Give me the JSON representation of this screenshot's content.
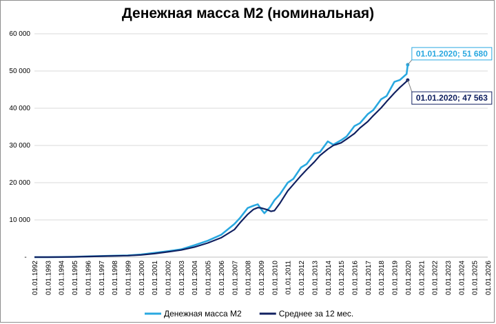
{
  "chart_data": {
    "type": "line",
    "title": "Денежная масса М2 (номинальная)",
    "xlabel": "",
    "ylabel": "",
    "ylim": [
      0,
      60000
    ],
    "xlim": [
      "1992-01-01",
      "2026-01-01"
    ],
    "y_ticks": [
      "-",
      "10 000",
      "20 000",
      "30 000",
      "40 000",
      "50 000",
      "60 000"
    ],
    "x_ticks": [
      "01.01.1992",
      "01.01.1993",
      "01.01.1994",
      "01.01.1995",
      "01.01.1996",
      "01.01.1997",
      "01.01.1998",
      "01.01.1999",
      "01.01.2000",
      "01.01.2001",
      "01.01.2002",
      "01.01.2003",
      "01.01.2004",
      "01.01.2005",
      "01.01.2006",
      "01.01.2007",
      "01.01.2008",
      "01.01.2009",
      "01.01.2010",
      "01.01.2011",
      "01.01.2012",
      "01.01.2013",
      "01.01.2014",
      "01.01.2015",
      "01.01.2016",
      "01.01.2017",
      "01.01.2018",
      "01.01.2019",
      "01.01.2020",
      "01.01.2021",
      "01.01.2022",
      "01.01.2023",
      "01.01.2024",
      "01.01.2025",
      "01.01.2026"
    ],
    "grid": true,
    "legend_position": "bottom",
    "series": [
      {
        "name": "Денежная масса М2",
        "color": "#29a8e0",
        "points": [
          [
            "1992-01-01",
            0
          ],
          [
            "1993-01-01",
            5
          ],
          [
            "1994-01-01",
            30
          ],
          [
            "1995-01-01",
            100
          ],
          [
            "1996-01-01",
            200
          ],
          [
            "1997-01-01",
            300
          ],
          [
            "1998-01-01",
            380
          ],
          [
            "1999-01-01",
            450
          ],
          [
            "2000-01-01",
            700
          ],
          [
            "2001-01-01",
            1150
          ],
          [
            "2002-01-01",
            1600
          ],
          [
            "2003-01-01",
            2100
          ],
          [
            "2004-01-01",
            3200
          ],
          [
            "2005-01-01",
            4400
          ],
          [
            "2006-01-01",
            6000
          ],
          [
            "2007-01-01",
            8900
          ],
          [
            "2007-06-01",
            10500
          ],
          [
            "2008-01-01",
            13200
          ],
          [
            "2008-06-01",
            13800
          ],
          [
            "2008-10-01",
            14200
          ],
          [
            "2009-01-01",
            12900
          ],
          [
            "2009-04-01",
            11800
          ],
          [
            "2009-09-01",
            13400
          ],
          [
            "2010-01-01",
            15300
          ],
          [
            "2010-06-01",
            16900
          ],
          [
            "2011-01-01",
            20000
          ],
          [
            "2011-06-01",
            21000
          ],
          [
            "2012-01-01",
            24100
          ],
          [
            "2012-06-01",
            25000
          ],
          [
            "2013-01-01",
            27800
          ],
          [
            "2013-06-01",
            28200
          ],
          [
            "2014-01-01",
            31100
          ],
          [
            "2014-06-01",
            30200
          ],
          [
            "2015-01-01",
            31400
          ],
          [
            "2015-06-01",
            32400
          ],
          [
            "2016-01-01",
            35200
          ],
          [
            "2016-06-01",
            36000
          ],
          [
            "2017-01-01",
            38400
          ],
          [
            "2017-06-01",
            39500
          ],
          [
            "2018-01-01",
            42400
          ],
          [
            "2018-06-01",
            43300
          ],
          [
            "2019-01-01",
            47100
          ],
          [
            "2019-06-01",
            47600
          ],
          [
            "2019-12-01",
            49200
          ],
          [
            "2020-01-01",
            51680
          ]
        ]
      },
      {
        "name": "Среднее за 12 мес.",
        "color": "#102060",
        "points": [
          [
            "1992-01-01",
            0
          ],
          [
            "1993-01-01",
            3
          ],
          [
            "1994-01-01",
            20
          ],
          [
            "1995-01-01",
            70
          ],
          [
            "1996-01-01",
            170
          ],
          [
            "1997-01-01",
            260
          ],
          [
            "1998-01-01",
            340
          ],
          [
            "1999-01-01",
            410
          ],
          [
            "2000-01-01",
            600
          ],
          [
            "2001-01-01",
            950
          ],
          [
            "2002-01-01",
            1400
          ],
          [
            "2003-01-01",
            1900
          ],
          [
            "2004-01-01",
            2700
          ],
          [
            "2005-01-01",
            3800
          ],
          [
            "2006-01-01",
            5200
          ],
          [
            "2007-01-01",
            7400
          ],
          [
            "2007-06-01",
            9200
          ],
          [
            "2008-01-01",
            11500
          ],
          [
            "2008-06-01",
            12800
          ],
          [
            "2008-10-01",
            13300
          ],
          [
            "2009-01-01",
            13200
          ],
          [
            "2009-06-01",
            12800
          ],
          [
            "2009-10-01",
            12300
          ],
          [
            "2010-01-01",
            12500
          ],
          [
            "2010-06-01",
            14500
          ],
          [
            "2011-01-01",
            17800
          ],
          [
            "2011-06-01",
            19500
          ],
          [
            "2012-01-01",
            21900
          ],
          [
            "2012-06-01",
            23500
          ],
          [
            "2013-01-01",
            25600
          ],
          [
            "2013-06-01",
            27300
          ],
          [
            "2014-01-01",
            29000
          ],
          [
            "2014-06-01",
            30000
          ],
          [
            "2015-01-01",
            30700
          ],
          [
            "2015-06-01",
            31700
          ],
          [
            "2016-01-01",
            33200
          ],
          [
            "2016-06-01",
            34700
          ],
          [
            "2017-01-01",
            36400
          ],
          [
            "2017-06-01",
            38000
          ],
          [
            "2018-01-01",
            40100
          ],
          [
            "2018-06-01",
            41800
          ],
          [
            "2019-01-01",
            44100
          ],
          [
            "2019-06-01",
            45600
          ],
          [
            "2019-12-01",
            47200
          ],
          [
            "2020-01-01",
            47563
          ]
        ]
      }
    ],
    "annotations": [
      {
        "text": "01.01.2020;  51 680",
        "series": 0,
        "color": "#29a8e0"
      },
      {
        "text": "01.01.2020; 47 563",
        "series": 1,
        "color": "#102060"
      }
    ]
  }
}
